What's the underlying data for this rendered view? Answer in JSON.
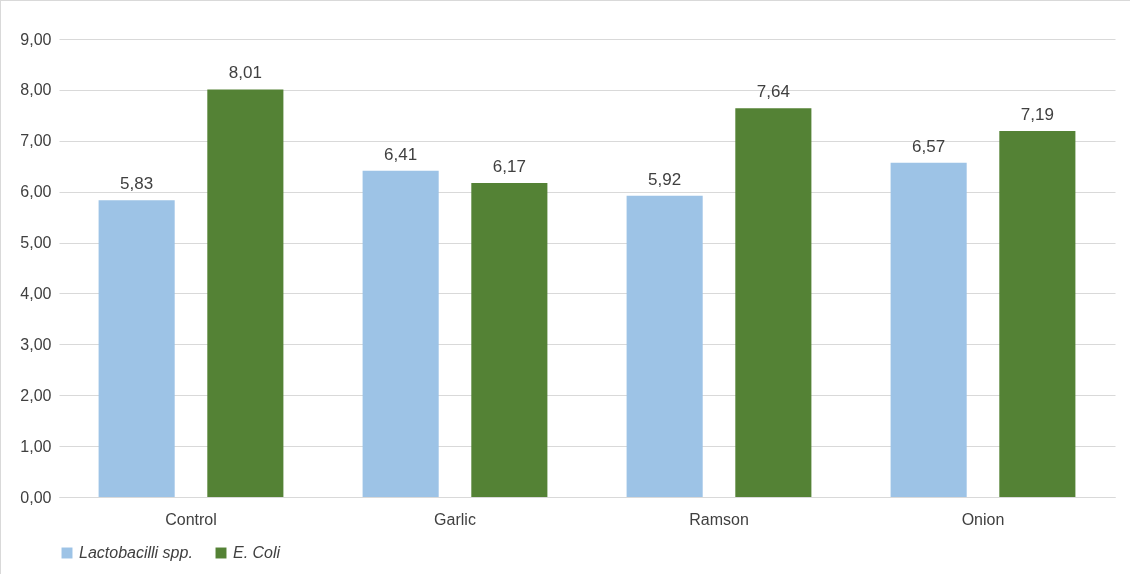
{
  "chart_data": {
    "type": "bar",
    "categories": [
      "Control",
      "Garlic",
      "Ramson",
      "Onion"
    ],
    "series": [
      {
        "name": "Lactobacilli spp.",
        "color": "#9dc3e6",
        "values": [
          5.83,
          6.41,
          5.92,
          6.57
        ],
        "value_labels": [
          "5,83",
          "6,41",
          "5,92",
          "6,57"
        ]
      },
      {
        "name": "E. Coli",
        "color": "#548235",
        "values": [
          8.01,
          6.17,
          7.64,
          7.19
        ],
        "value_labels": [
          "8,01",
          "6,17",
          "7,64",
          "7,19"
        ]
      }
    ],
    "ylim": [
      0,
      9
    ],
    "yticks": [
      {
        "value": 0,
        "label": "0,00"
      },
      {
        "value": 1,
        "label": "1,00"
      },
      {
        "value": 2,
        "label": "2,00"
      },
      {
        "value": 3,
        "label": "3,00"
      },
      {
        "value": 4,
        "label": "4,00"
      },
      {
        "value": 5,
        "label": "5,00"
      },
      {
        "value": 6,
        "label": "6,00"
      },
      {
        "value": 7,
        "label": "7,00"
      },
      {
        "value": 8,
        "label": "8,00"
      },
      {
        "value": 9,
        "label": "9,00"
      }
    ],
    "grid": "y",
    "legend": "bottom"
  }
}
